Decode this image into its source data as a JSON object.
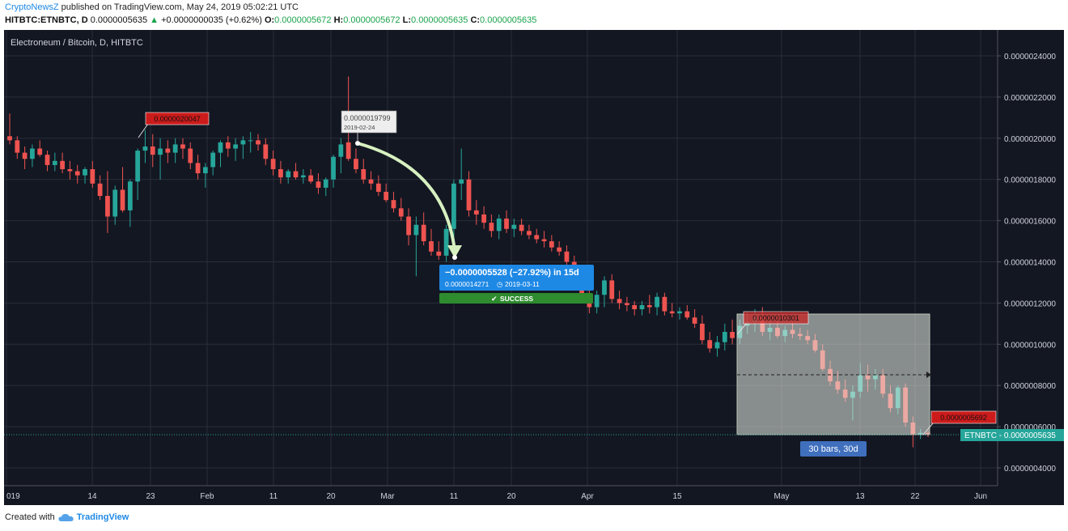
{
  "header": {
    "brand": "CryptoNewsZ",
    "published_text": " published on TradingView.com, May 24, 2019 05:02:21 UTC",
    "symbol": "HITBTC:ETNBTC, D",
    "last": "0.0000005635",
    "up_arrow": "▲",
    "change": "+0.0000000035 (+0.62%)",
    "o_label": "O:",
    "o_value": "0.0000005672",
    "h_label": "H:",
    "h_value": "0.0000005672",
    "l_label": "L:",
    "l_value": "0.0000005635",
    "c_label": "C:",
    "c_value": "0.0000005635"
  },
  "chart": {
    "title": "Electroneum / Bitcoin, D, HITBTC",
    "price_tag": "ETNBTC - 0.0000005635",
    "colors": {
      "bg": "#131722",
      "up": "#26a69a",
      "down": "#ef5350",
      "grid": "#2a2e39",
      "axis_text": "#d1d4dc"
    }
  },
  "annotations": {
    "callout_high_jan": "0.0000020047",
    "callout_feb_price": "0.0000019799",
    "callout_feb_date": "2019-02-24",
    "measure_line1": "−0.0000005528 (−27.92%) in 15d",
    "measure_price": "0.0000014271",
    "measure_date": "2019-03-11",
    "success_label": "SUCCESS",
    "callout_apr": "0.0000010301",
    "callout_last": "0.0000005692",
    "range_label": "30 bars, 30d"
  },
  "footer": {
    "created_with": "Created with",
    "tv_brand": "TradingView"
  },
  "chart_data": {
    "type": "candlestick",
    "title": "Electroneum / Bitcoin, D, HITBTC",
    "x_tick_labels": [
      "019",
      "14",
      "23",
      "Feb",
      "11",
      "20",
      "Mar",
      "11",
      "20",
      "Apr",
      "15",
      "May",
      "13",
      "22",
      "Jun"
    ],
    "y_tick_labels": [
      "0.0000024000",
      "0.0000022000",
      "0.0000020000",
      "0.0000018000",
      "0.0000016000",
      "0.0000014000",
      "0.0000012000",
      "0.0000010000",
      "0.0000008000",
      "0.0000006000",
      "0.0000004000"
    ],
    "y_range": [
      3e-07,
      2.5e-06
    ],
    "candles": [
      [
        2.01e-06,
        2.12e-06,
        1.97e-06,
        1.99e-06
      ],
      [
        1.99e-06,
        2.01e-06,
        1.9e-06,
        1.93e-06
      ],
      [
        1.93e-06,
        1.96e-06,
        1.85e-06,
        1.9e-06
      ],
      [
        1.9e-06,
        1.97e-06,
        1.86e-06,
        1.95e-06
      ],
      [
        1.95e-06,
        1.99e-06,
        1.91e-06,
        1.92e-06
      ],
      [
        1.92e-06,
        1.94e-06,
        1.84e-06,
        1.87e-06
      ],
      [
        1.87e-06,
        1.93e-06,
        1.84e-06,
        1.89e-06
      ],
      [
        1.89e-06,
        1.93e-06,
        1.83e-06,
        1.85e-06
      ],
      [
        1.85e-06,
        1.89e-06,
        1.8e-06,
        1.84e-06
      ],
      [
        1.84e-06,
        1.87e-06,
        1.78e-06,
        1.82e-06
      ],
      [
        1.82e-06,
        1.86e-06,
        1.78e-06,
        1.85e-06
      ],
      [
        1.85e-06,
        1.89e-06,
        1.76e-06,
        1.78e-06
      ],
      [
        1.78e-06,
        1.82e-06,
        1.7e-06,
        1.72e-06
      ],
      [
        1.72e-06,
        1.84e-06,
        1.54e-06,
        1.62e-06
      ],
      [
        1.62e-06,
        1.77e-06,
        1.58e-06,
        1.75e-06
      ],
      [
        1.75e-06,
        1.86e-06,
        1.64e-06,
        1.65e-06
      ],
      [
        1.65e-06,
        1.8e-06,
        1.57e-06,
        1.79e-06
      ],
      [
        1.79e-06,
        1.95e-06,
        1.7e-06,
        1.94e-06
      ],
      [
        1.94e-06,
        2.04e-06,
        1.88e-06,
        1.96e-06
      ],
      [
        1.96e-06,
        2.02e-06,
        1.86e-06,
        1.92e-06
      ],
      [
        1.92e-06,
        2e-06,
        1.8e-06,
        1.95e-06
      ],
      [
        1.95e-06,
        1.99e-06,
        1.88e-06,
        1.93e-06
      ],
      [
        1.93e-06,
        2e-06,
        1.88e-06,
        1.97e-06
      ],
      [
        1.97e-06,
        2e-06,
        1.9e-06,
        1.95e-06
      ],
      [
        1.95e-06,
        1.98e-06,
        1.85e-06,
        1.88e-06
      ],
      [
        1.88e-06,
        1.92e-06,
        1.8e-06,
        1.83e-06
      ],
      [
        1.83e-06,
        1.88e-06,
        1.76e-06,
        1.86e-06
      ],
      [
        1.86e-06,
        1.94e-06,
        1.82e-06,
        1.93e-06
      ],
      [
        1.93e-06,
        1.99e-06,
        1.86e-06,
        1.98e-06
      ],
      [
        1.98e-06,
        2.01e-06,
        1.91e-06,
        1.95e-06
      ],
      [
        1.95e-06,
        2e-06,
        1.89e-06,
        1.97e-06
      ],
      [
        1.97e-06,
        2.01e-06,
        1.9e-06,
        1.99e-06
      ],
      [
        1.99e-06,
        2.03e-06,
        1.93e-06,
        1.99e-06
      ],
      [
        1.99e-06,
        2.02e-06,
        1.94e-06,
        1.97e-06
      ],
      [
        1.97e-06,
        2e-06,
        1.87e-06,
        1.9e-06
      ],
      [
        1.9e-06,
        1.94e-06,
        1.82e-06,
        1.85e-06
      ],
      [
        1.85e-06,
        1.89e-06,
        1.78e-06,
        1.81e-06
      ],
      [
        1.81e-06,
        1.85e-06,
        1.78e-06,
        1.84e-06
      ],
      [
        1.84e-06,
        1.88e-06,
        1.8e-06,
        1.81e-06
      ],
      [
        1.81e-06,
        1.85e-06,
        1.78e-06,
        1.82e-06
      ],
      [
        1.82e-06,
        1.85e-06,
        1.78e-06,
        1.79e-06
      ],
      [
        1.79e-06,
        1.83e-06,
        1.73e-06,
        1.76e-06
      ],
      [
        1.76e-06,
        1.81e-06,
        1.72e-06,
        1.8e-06
      ],
      [
        1.8e-06,
        1.92e-06,
        1.76e-06,
        1.91e-06
      ],
      [
        1.91e-06,
        2e-06,
        1.83e-06,
        1.97e-06
      ],
      [
        1.98e-06,
        2.3e-06,
        1.89e-06,
        1.9e-06
      ],
      [
        1.9e-06,
        1.95e-06,
        1.83e-06,
        1.85e-06
      ],
      [
        1.85e-06,
        1.9e-06,
        1.78e-06,
        1.8e-06
      ],
      [
        1.8e-06,
        1.84e-06,
        1.75e-06,
        1.78e-06
      ],
      [
        1.78e-06,
        1.82e-06,
        1.72e-06,
        1.74e-06
      ],
      [
        1.74e-06,
        1.78e-06,
        1.69e-06,
        1.7e-06
      ],
      [
        1.7e-06,
        1.74e-06,
        1.64e-06,
        1.66e-06
      ],
      [
        1.66e-06,
        1.71e-06,
        1.6e-06,
        1.62e-06
      ],
      [
        1.62e-06,
        1.66e-06,
        1.48e-06,
        1.53e-06
      ],
      [
        1.53e-06,
        1.62e-06,
        1.33e-06,
        1.58e-06
      ],
      [
        1.58e-06,
        1.64e-06,
        1.48e-06,
        1.5e-06
      ],
      [
        1.5e-06,
        1.56e-06,
        1.43e-06,
        1.45e-06
      ],
      [
        1.45e-06,
        1.5e-06,
        1.41e-06,
        1.43e-06
      ],
      [
        1.43e-06,
        1.58e-06,
        1.4e-06,
        1.56e-06
      ],
      [
        1.56e-06,
        1.8e-06,
        1.52e-06,
        1.78e-06
      ],
      [
        1.78e-06,
        1.95e-06,
        1.7e-06,
        1.8e-06
      ],
      [
        1.8e-06,
        1.84e-06,
        1.62e-06,
        1.65e-06
      ],
      [
        1.65e-06,
        1.7e-06,
        1.58e-06,
        1.63e-06
      ],
      [
        1.63e-06,
        1.67e-06,
        1.56e-06,
        1.59e-06
      ],
      [
        1.59e-06,
        1.63e-06,
        1.52e-06,
        1.55e-06
      ],
      [
        1.55e-06,
        1.63e-06,
        1.51e-06,
        1.61e-06
      ],
      [
        1.61e-06,
        1.65e-06,
        1.54e-06,
        1.56e-06
      ],
      [
        1.56e-06,
        1.61e-06,
        1.52e-06,
        1.58e-06
      ],
      [
        1.58e-06,
        1.61e-06,
        1.53e-06,
        1.55e-06
      ],
      [
        1.55e-06,
        1.58e-06,
        1.51e-06,
        1.53e-06
      ],
      [
        1.53e-06,
        1.56e-06,
        1.49e-06,
        1.51e-06
      ],
      [
        1.51e-06,
        1.55e-06,
        1.47e-06,
        1.5e-06
      ],
      [
        1.5e-06,
        1.53e-06,
        1.45e-06,
        1.47e-06
      ],
      [
        1.47e-06,
        1.5e-06,
        1.43e-06,
        1.45e-06
      ],
      [
        1.45e-06,
        1.48e-06,
        1.38e-06,
        1.4e-06
      ],
      [
        1.4e-06,
        1.43e-06,
        1.31e-06,
        1.33e-06
      ],
      [
        1.33e-06,
        1.36e-06,
        1.22e-06,
        1.24e-06
      ],
      [
        1.24e-06,
        1.27e-06,
        1.15e-06,
        1.18e-06
      ],
      [
        1.18e-06,
        1.26e-06,
        1.15e-06,
        1.24e-06
      ],
      [
        1.24e-06,
        1.33e-06,
        1.18e-06,
        1.31e-06
      ],
      [
        1.31e-06,
        1.34e-06,
        1.2e-06,
        1.22e-06
      ],
      [
        1.22e-06,
        1.26e-06,
        1.17e-06,
        1.2e-06
      ],
      [
        1.2e-06,
        1.23e-06,
        1.16e-06,
        1.19e-06
      ],
      [
        1.19e-06,
        1.21e-06,
        1.14e-06,
        1.17e-06
      ],
      [
        1.17e-06,
        1.21e-06,
        1.14e-06,
        1.19e-06
      ],
      [
        1.19e-06,
        1.24e-06,
        1.15e-06,
        1.18e-06
      ],
      [
        1.18e-06,
        1.25e-06,
        1.14e-06,
        1.23e-06
      ],
      [
        1.23e-06,
        1.25e-06,
        1.14e-06,
        1.16e-06
      ],
      [
        1.16e-06,
        1.2e-06,
        1.13e-06,
        1.15e-06
      ],
      [
        1.15e-06,
        1.18e-06,
        1.12e-06,
        1.16e-06
      ],
      [
        1.16e-06,
        1.19e-06,
        1.12e-06,
        1.13e-06
      ],
      [
        1.13e-06,
        1.17e-06,
        1.08e-06,
        1.1e-06
      ],
      [
        1.1e-06,
        1.14e-06,
        1e-06,
        1.02e-06
      ],
      [
        1.02e-06,
        1.06e-06,
        9.6e-07,
        9.8e-07
      ],
      [
        9.8e-07,
        1.04e-06,
        9.4e-07,
        1.01e-06
      ],
      [
        1.01e-06,
        1.1e-06,
        9.7e-07,
        1.06e-06
      ],
      [
        1.06e-06,
        1.12e-06,
        1e-06,
        1.03e-06
      ],
      [
        1.03e-06,
        1.12e-06,
        1e-06,
        1.09e-06
      ],
      [
        1.09e-06,
        1.16e-06,
        1.05e-06,
        1.11e-06
      ],
      [
        1.11e-06,
        1.17e-06,
        1.06e-06,
        1.13e-06
      ],
      [
        1.13e-06,
        1.18e-06,
        1.04e-06,
        1.06e-06
      ],
      [
        1.06e-06,
        1.12e-06,
        1.02e-06,
        1.08e-06
      ],
      [
        1.08e-06,
        1.12e-06,
        1.03e-06,
        1.04e-06
      ],
      [
        1.04e-06,
        1.09e-06,
        1.01e-06,
        1.07e-06
      ],
      [
        1.07e-06,
        1.11e-06,
        1.03e-06,
        1.05e-06
      ],
      [
        1.05e-06,
        1.08e-06,
        1.02e-06,
        1.04e-06
      ],
      [
        1.04e-06,
        1.07e-06,
        1e-06,
        1.02e-06
      ],
      [
        1.02e-06,
        1.05e-06,
        9.6e-07,
        9.7e-07
      ],
      [
        9.7e-07,
        1e-06,
        8.7e-07,
        8.8e-07
      ],
      [
        8.8e-07,
        9.2e-07,
        8e-07,
        8.2e-07
      ],
      [
        8.2e-07,
        8.7e-07,
        7.6e-07,
        7.8e-07
      ],
      [
        7.8e-07,
        8.3e-07,
        7.2e-07,
        7.4e-07
      ],
      [
        7.4e-07,
        8e-07,
        6.3e-07,
        7.7e-07
      ],
      [
        7.7e-07,
        9.1e-07,
        7.4e-07,
        8.5e-07
      ],
      [
        8.5e-07,
        9e-07,
        7.7e-07,
        8.3e-07
      ],
      [
        8.3e-07,
        8.8e-07,
        7.8e-07,
        8.5e-07
      ],
      [
        8.5e-07,
        8.8e-07,
        7.4e-07,
        7.6e-07
      ],
      [
        7.6e-07,
        8e-07,
        6.7e-07,
        6.9e-07
      ],
      [
        6.9e-07,
        8e-07,
        6.6e-07,
        7.9e-07
      ],
      [
        7.9e-07,
        8.1e-07,
        6e-07,
        6.2e-07
      ],
      [
        6.2e-07,
        6.5e-07,
        5e-07,
        5.6e-07
      ],
      [
        5.6e-07,
        5.9e-07,
        5.4e-07,
        5.7e-07
      ],
      [
        5.7e-07,
        5.8e-07,
        5.5e-07,
        5.6e-07
      ]
    ]
  }
}
